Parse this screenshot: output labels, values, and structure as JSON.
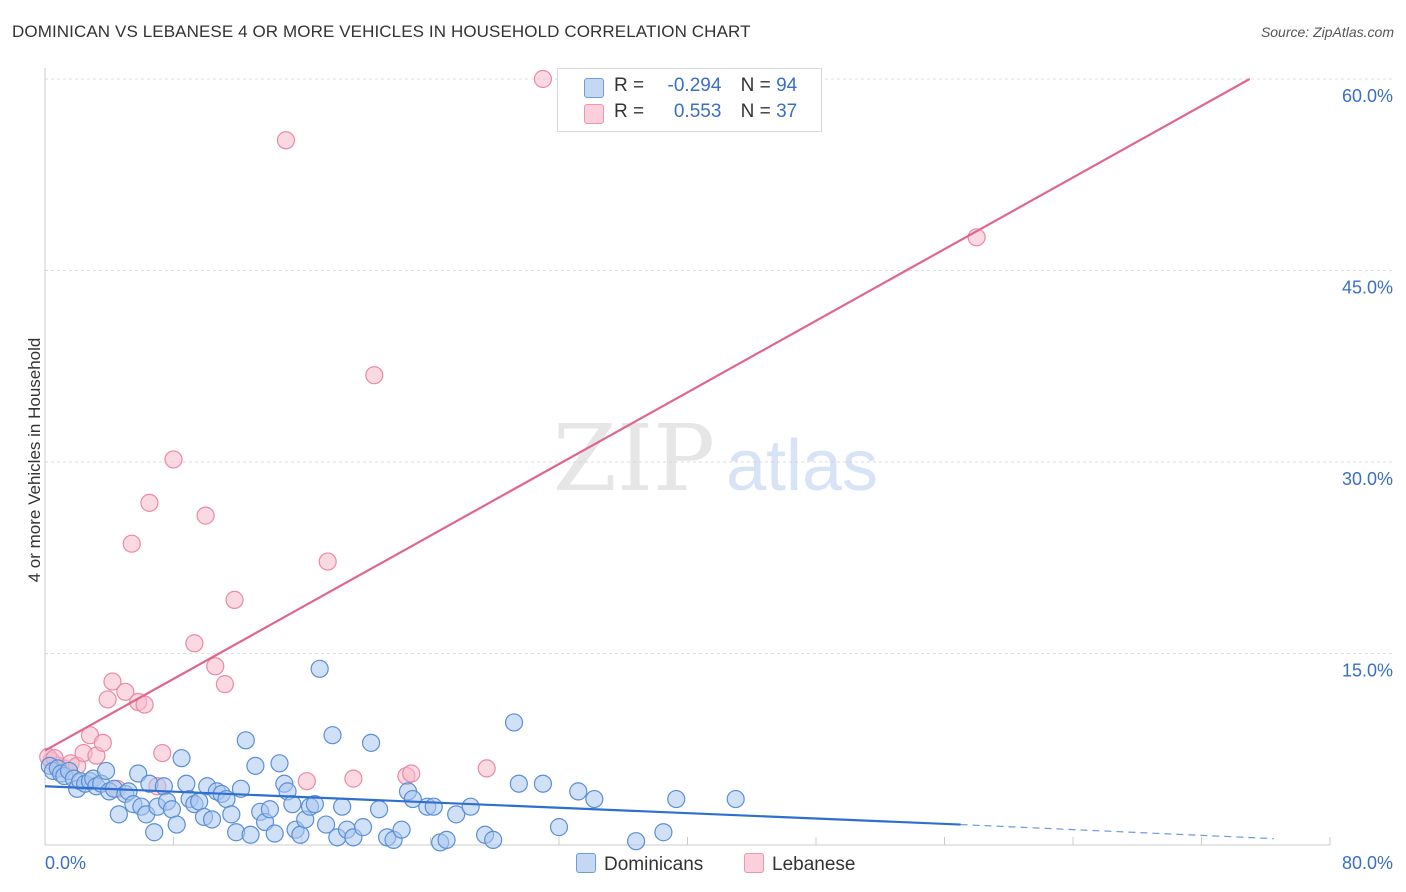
{
  "title": "DOMINICAN VS LEBANESE 4 OR MORE VEHICLES IN HOUSEHOLD CORRELATION CHART",
  "source": "Source: ZipAtlas.com",
  "watermark": {
    "zip": "ZIP",
    "atlas": "atlas"
  },
  "legend_top": {
    "r_label": "R =",
    "n_label": "N =",
    "rows": [
      {
        "series": "Dominicans",
        "r": "-0.294",
        "n": "94"
      },
      {
        "series": "Lebanese",
        "r": "0.553",
        "n": "37"
      }
    ]
  },
  "colors": {
    "dominicans_fill": "#a9c6ef",
    "dominicans_stroke": "#5b8fd6",
    "dominicans_line": "#2f6fcf",
    "lebanese_fill": "#f7b9cb",
    "lebanese_stroke": "#e98aa6",
    "lebanese_line": "#e06690",
    "axis_text": "#3a6fc4",
    "grid": "#dddddd"
  },
  "chart_data": {
    "type": "scatter",
    "title": "DOMINICAN VS LEBANESE 4 OR MORE VEHICLES IN HOUSEHOLD CORRELATION CHART",
    "xlabel": "",
    "ylabel": "4 or more Vehicles in Household",
    "xlim": [
      0,
      80
    ],
    "ylim": [
      0,
      60
    ],
    "x_tick_labels": [
      "0.0%",
      "80.0%"
    ],
    "y_ticks": [
      15,
      30,
      45,
      60
    ],
    "y_tick_labels": [
      "15.0%",
      "30.0%",
      "45.0%",
      "60.0%"
    ],
    "grid": true,
    "legend_position": "bottom",
    "series": [
      {
        "name": "Dominicans",
        "points": [
          [
            0.3,
            6.2
          ],
          [
            0.5,
            5.8
          ],
          [
            0.8,
            6.0
          ],
          [
            1.0,
            5.6
          ],
          [
            1.2,
            5.4
          ],
          [
            1.5,
            5.8
          ],
          [
            1.8,
            5.2
          ],
          [
            2.0,
            4.4
          ],
          [
            2.2,
            5.0
          ],
          [
            2.5,
            4.8
          ],
          [
            2.8,
            5.0
          ],
          [
            3.0,
            5.2
          ],
          [
            3.2,
            4.6
          ],
          [
            3.5,
            4.8
          ],
          [
            3.8,
            5.8
          ],
          [
            4.0,
            4.2
          ],
          [
            4.3,
            4.4
          ],
          [
            4.6,
            2.4
          ],
          [
            5.0,
            4.0
          ],
          [
            5.2,
            4.2
          ],
          [
            5.5,
            3.2
          ],
          [
            5.8,
            5.6
          ],
          [
            6.0,
            3.0
          ],
          [
            6.3,
            2.4
          ],
          [
            6.5,
            4.8
          ],
          [
            6.8,
            1.0
          ],
          [
            7.0,
            3.0
          ],
          [
            7.4,
            4.6
          ],
          [
            7.6,
            3.4
          ],
          [
            7.9,
            2.8
          ],
          [
            8.2,
            1.6
          ],
          [
            8.5,
            6.8
          ],
          [
            8.8,
            4.8
          ],
          [
            9.0,
            3.6
          ],
          [
            9.3,
            3.2
          ],
          [
            9.6,
            3.4
          ],
          [
            9.9,
            2.2
          ],
          [
            10.1,
            4.6
          ],
          [
            10.4,
            2.0
          ],
          [
            10.7,
            4.2
          ],
          [
            11.0,
            4.0
          ],
          [
            11.3,
            3.6
          ],
          [
            11.6,
            2.4
          ],
          [
            11.9,
            1.0
          ],
          [
            12.2,
            4.4
          ],
          [
            12.5,
            8.2
          ],
          [
            12.8,
            0.8
          ],
          [
            13.1,
            6.2
          ],
          [
            13.4,
            2.6
          ],
          [
            13.7,
            1.8
          ],
          [
            14.0,
            2.8
          ],
          [
            14.3,
            0.9
          ],
          [
            14.6,
            6.4
          ],
          [
            14.9,
            4.8
          ],
          [
            15.1,
            4.2
          ],
          [
            15.4,
            3.2
          ],
          [
            15.6,
            1.2
          ],
          [
            15.9,
            0.8
          ],
          [
            16.2,
            2.0
          ],
          [
            16.5,
            3.0
          ],
          [
            16.8,
            3.2
          ],
          [
            17.1,
            13.8
          ],
          [
            17.5,
            1.6
          ],
          [
            17.9,
            8.6
          ],
          [
            18.2,
            0.6
          ],
          [
            18.5,
            3.0
          ],
          [
            18.8,
            1.2
          ],
          [
            19.2,
            0.6
          ],
          [
            19.8,
            1.4
          ],
          [
            20.3,
            8.0
          ],
          [
            20.8,
            2.8
          ],
          [
            21.3,
            0.6
          ],
          [
            21.7,
            0.4
          ],
          [
            22.2,
            1.2
          ],
          [
            22.6,
            4.2
          ],
          [
            22.9,
            3.6
          ],
          [
            23.8,
            3.0
          ],
          [
            24.2,
            3.0
          ],
          [
            24.6,
            0.2
          ],
          [
            25.0,
            0.4
          ],
          [
            25.6,
            2.4
          ],
          [
            26.5,
            3.0
          ],
          [
            27.4,
            0.8
          ],
          [
            27.9,
            0.4
          ],
          [
            29.2,
            9.6
          ],
          [
            29.5,
            4.8
          ],
          [
            31.0,
            4.8
          ],
          [
            32.0,
            1.4
          ],
          [
            33.2,
            4.2
          ],
          [
            34.2,
            3.6
          ],
          [
            36.8,
            0.3
          ],
          [
            38.5,
            1.0
          ],
          [
            39.3,
            3.6
          ],
          [
            43.0,
            3.6
          ]
        ],
        "trend": {
          "x": [
            0,
            57
          ],
          "y": [
            4.6,
            1.6
          ],
          "dashed_extension": {
            "x": [
              57,
              76.5
            ],
            "y": [
              1.6,
              0.5
            ]
          }
        }
      },
      {
        "name": "Lebanese",
        "points": [
          [
            0.4,
            6.6
          ],
          [
            0.8,
            6.2
          ],
          [
            1.2,
            6.0
          ],
          [
            1.6,
            6.4
          ],
          [
            2.0,
            6.2
          ],
          [
            2.4,
            7.2
          ],
          [
            2.8,
            8.6
          ],
          [
            3.2,
            7.0
          ],
          [
            3.6,
            8.0
          ],
          [
            3.9,
            11.4
          ],
          [
            4.2,
            12.8
          ],
          [
            4.5,
            4.4
          ],
          [
            5.0,
            12.0
          ],
          [
            5.4,
            23.6
          ],
          [
            5.8,
            11.2
          ],
          [
            6.2,
            11.0
          ],
          [
            6.5,
            26.8
          ],
          [
            7.0,
            4.6
          ],
          [
            7.3,
            7.2
          ],
          [
            8.0,
            30.2
          ],
          [
            9.3,
            15.8
          ],
          [
            10.0,
            25.8
          ],
          [
            10.6,
            14.0
          ],
          [
            11.2,
            12.6
          ],
          [
            11.8,
            19.2
          ],
          [
            15.0,
            55.2
          ],
          [
            16.3,
            5.0
          ],
          [
            17.6,
            22.2
          ],
          [
            19.2,
            5.2
          ],
          [
            20.5,
            36.8
          ],
          [
            22.5,
            5.4
          ],
          [
            22.8,
            5.6
          ],
          [
            27.5,
            6.0
          ],
          [
            31.0,
            60.0
          ],
          [
            58.0,
            47.6
          ],
          [
            0.2,
            6.9
          ],
          [
            0.6,
            6.8
          ]
        ],
        "trend": {
          "x": [
            0,
            75
          ],
          "y": [
            7.4,
            60.0
          ]
        }
      }
    ]
  }
}
